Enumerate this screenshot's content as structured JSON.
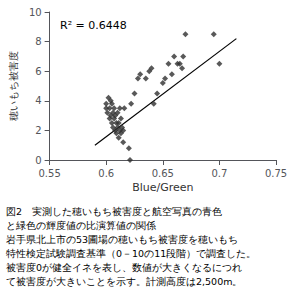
{
  "chart_data": {
    "type": "scatter",
    "xlabel": "Blue/Green",
    "ylabel": "穂いもち被害度",
    "annotations": [
      "R² = 0.6448"
    ],
    "caption": [
      "図2　実測した穂いもち被害度と航空写真の青色",
      "と緑色の輝度値の比演算値の関係",
      "岩手県北上市の53圃場の穂いもち被害度を穂いもち",
      "特性検定試験調査基準（0－10の11段階）で調査した。",
      "被害度0が健全イネを表し、数値が大きくなるにつれ",
      "て被害度が大きいことを示す。計測高度は2,500m。"
    ],
    "xlim": [
      0.55,
      0.75
    ],
    "ylim": [
      0,
      10
    ],
    "xticks": [
      0.55,
      0.6,
      0.65,
      0.7,
      0.75
    ],
    "yticks": [
      0,
      2,
      4,
      6,
      8,
      10
    ],
    "grid": false,
    "background": "#ffffff",
    "series": [
      {
        "type": "scatter",
        "marker": "diamond",
        "color": "#303030",
        "x": [
          0.6,
          0.6,
          0.601,
          0.602,
          0.603,
          0.603,
          0.604,
          0.604,
          0.605,
          0.605,
          0.606,
          0.606,
          0.607,
          0.607,
          0.608,
          0.608,
          0.609,
          0.609,
          0.61,
          0.61,
          0.611,
          0.611,
          0.612,
          0.612,
          0.613,
          0.613,
          0.614,
          0.615,
          0.615,
          0.616,
          0.62,
          0.621,
          0.622,
          0.625,
          0.628,
          0.63,
          0.635,
          0.638,
          0.64,
          0.642,
          0.645,
          0.65,
          0.652,
          0.655,
          0.658,
          0.66,
          0.663,
          0.665,
          0.667,
          0.668,
          0.67,
          0.695,
          0.7
        ],
        "values": [
          3.5,
          3.8,
          3.2,
          4.2,
          2.8,
          3.5,
          3.0,
          4.0,
          2.5,
          3.8,
          3.2,
          2.2,
          3.5,
          2.8,
          2.0,
          3.0,
          2.5,
          1.8,
          2.2,
          3.2,
          2.5,
          1.5,
          2.0,
          3.5,
          1.8,
          2.8,
          2.2,
          1.2,
          2.0,
          3.5,
          0.8,
          0.0,
          3.8,
          4.5,
          5.5,
          5.8,
          5.5,
          6.0,
          6.2,
          3.8,
          4.5,
          5.2,
          5.5,
          6.5,
          5.8,
          7.0,
          6.5,
          6.5,
          6.2,
          7.0,
          8.5,
          8.5,
          6.5
        ]
      },
      {
        "type": "line",
        "line_style": "solid",
        "color": "#000000",
        "x": [
          0.59,
          0.715
        ],
        "values": [
          1.0,
          8.2
        ]
      }
    ]
  }
}
